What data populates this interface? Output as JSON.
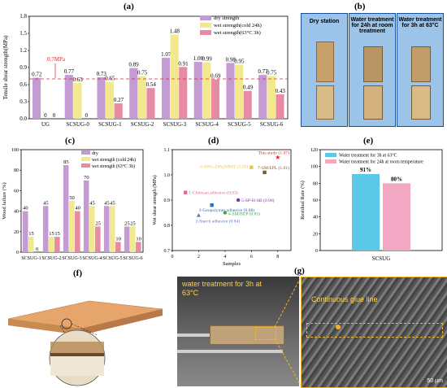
{
  "panel_labels": {
    "a": "(a)",
    "b": "(b)",
    "c": "(c)",
    "d": "(d)",
    "e": "(e)",
    "f": "(f)",
    "g": "(g)"
  },
  "chart_data": [
    {
      "id": "a",
      "type": "bar",
      "ylabel": "Tensile shear strength(MPa)",
      "ylim": [
        0,
        1.8
      ],
      "yticks": [
        0.0,
        0.3,
        0.6,
        0.9,
        1.2,
        1.5,
        1.8
      ],
      "threshold": {
        "value": 0.7,
        "label": "0.7MPa"
      },
      "categories": [
        "UG",
        "SCSUG-0",
        "SCSUG-1",
        "SCSUG-2",
        "SCSUG-3",
        "SCSUG-4",
        "SCSUG-5",
        "SCSUG-6"
      ],
      "series": [
        {
          "name": "dry strength",
          "color": "#c59bd4",
          "values": [
            0.72,
            0.77,
            0.73,
            0.89,
            1.07,
            1.0,
            0.98,
            0.77
          ],
          "labels": [
            "0.72",
            "0.77",
            "0.73",
            "0.89",
            "1.07",
            "1.00",
            "0.98",
            "0.77"
          ]
        },
        {
          "name": "wet strength(cold 24h)",
          "color": "#f2e98e",
          "values": [
            0,
            0.63,
            0.65,
            0.75,
            1.48,
            0.99,
            0.95,
            0.75
          ],
          "labels": [
            "0",
            "0.63",
            "0.65",
            "0.75",
            "1.48",
            "0.99",
            "0.95",
            "0.75"
          ]
        },
        {
          "name": "wet strength(63°C 3h)",
          "color": "#e88aa3",
          "values": [
            0,
            0,
            0.27,
            0.54,
            0.91,
            0.69,
            0.49,
            0.43
          ],
          "labels": [
            "0",
            "0",
            "0.27",
            "0.54",
            "0.91",
            "0.69",
            "0.49",
            "0.43"
          ]
        }
      ],
      "legend_position": "top-right"
    },
    {
      "id": "c",
      "type": "bar",
      "ylabel": "Wood failure (%)",
      "ylim": [
        0,
        100
      ],
      "yticks": [
        0,
        20,
        40,
        60,
        80,
        100
      ],
      "categories": [
        "SCSUG-1",
        "SCSUG-2",
        "SCSUG-3",
        "SCSUG-4",
        "SCSUG-5",
        "SCSUG-6"
      ],
      "series": [
        {
          "name": "dry",
          "color": "#c59bd4",
          "values": [
            40,
            45,
            85,
            70,
            45,
            25
          ]
        },
        {
          "name": "wet strength (cold 24h)",
          "color": "#f2e98e",
          "values": [
            15,
            15,
            50,
            45,
            45,
            25
          ]
        },
        {
          "name": "wet strength (63°C 3h)",
          "color": "#e88aa3",
          "values": [
            0,
            15,
            40,
            25,
            10,
            10
          ]
        }
      ],
      "legend_position": "top-right"
    },
    {
      "id": "d",
      "type": "scatter",
      "xlabel": "Samples",
      "ylabel": "Wet shear strength (MPa)",
      "xlim": [
        0,
        9
      ],
      "ylim": [
        0.7,
        1.1
      ],
      "xticks": [
        0,
        2,
        4,
        6,
        8
      ],
      "yticks": [
        0.7,
        0.8,
        0.9,
        1.0,
        1.1
      ],
      "points": [
        {
          "label": "This study (1.07)",
          "x": 8,
          "y": 1.07,
          "color": "#e8202a",
          "marker": "star"
        },
        {
          "label": "6-SPI/c-DP@MMT (1.03)",
          "x": 6,
          "y": 1.03,
          "color": "#e8c850",
          "marker": "square"
        },
        {
          "label": "7-SM/EPL (1.01)",
          "x": 7,
          "y": 1.01,
          "color": "#7a5a1e",
          "marker": "square"
        },
        {
          "label": "1-Chitosan adhesive (0.93)",
          "x": 1,
          "y": 0.93,
          "color": "#e26b8a",
          "marker": "square"
        },
        {
          "label": "5-SP-H-SB (0.90)",
          "x": 5,
          "y": 0.9,
          "color": "#7b2fa5",
          "marker": "circle"
        },
        {
          "label": "3-Geopolymer adhesive (0.88)",
          "x": 3,
          "y": 0.88,
          "color": "#2f6fb5",
          "marker": "square"
        },
        {
          "label": "4-SM/BEP (0.85)",
          "x": 4,
          "y": 0.85,
          "color": "#3aa64a",
          "marker": "circle"
        },
        {
          "label": "2-Starch adhesive (0.84)",
          "x": 2,
          "y": 0.84,
          "color": "#5a7ab5",
          "marker": "triangle"
        }
      ]
    },
    {
      "id": "e",
      "type": "bar",
      "ylabel": "Residual Rate (%)",
      "ylim": [
        0,
        120
      ],
      "yticks": [
        0,
        20,
        40,
        60,
        80,
        100,
        120
      ],
      "categories": [
        "SCSUG"
      ],
      "series": [
        {
          "name": "Water treatment for 3h at 63°C",
          "color": "#5bc8e8",
          "values": [
            91
          ],
          "labels": [
            "91%"
          ]
        },
        {
          "name": "Water treatment for 24h at room temperature",
          "color": "#f2a7c3",
          "values": [
            80
          ],
          "labels": [
            "80%"
          ]
        }
      ],
      "legend_position": "top"
    }
  ],
  "photos_b": {
    "labels": [
      "Dry station",
      "Water treatment for 24h at room treatment",
      "Water treatment for 3h at 63°C"
    ]
  },
  "photo_g": {
    "left_text": "water treatment for 3h at 63°C",
    "right_text": "Continuous glue line",
    "scale": "50 µm"
  }
}
